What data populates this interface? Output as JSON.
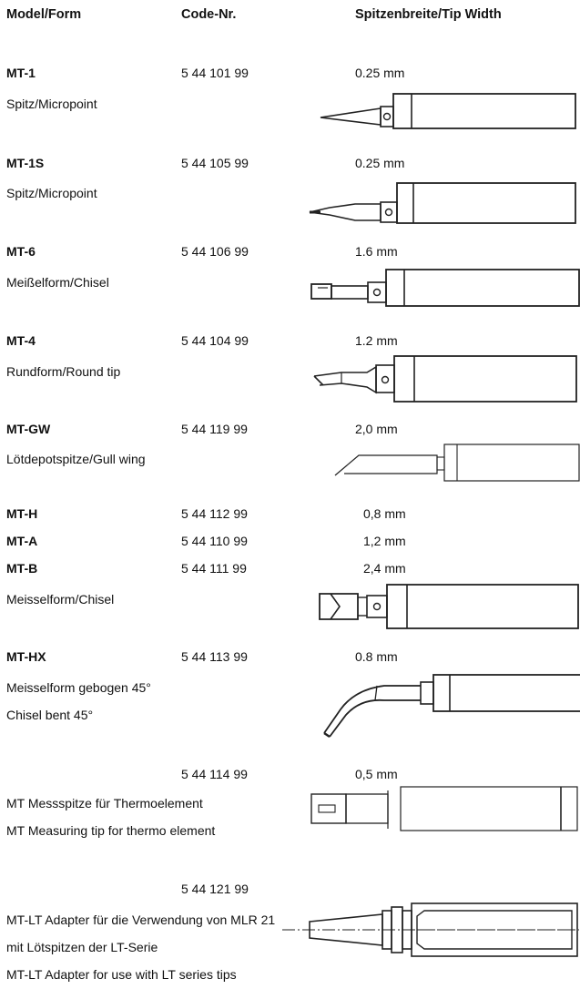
{
  "header": {
    "model": "Model/Form",
    "code": "Code-Nr.",
    "width": "Spitzenbreite/Tip Width"
  },
  "rows": [
    {
      "model": "MT-1",
      "desc": "Spitz/Micropoint",
      "code": "5 44 101 99",
      "width": "0.25 mm"
    },
    {
      "model": "MT-1S",
      "desc": "Spitz/Micropoint",
      "code": "5 44 105 99",
      "width": "0.25 mm"
    },
    {
      "model": "MT-6",
      "desc": "Meißelform/Chisel",
      "code": "5 44 106 99",
      "width": "1.6 mm"
    },
    {
      "model": "MT-4",
      "desc": "Rundform/Round tip",
      "code": "5 44 104 99",
      "width": "1.2 mm"
    },
    {
      "model": "MT-GW",
      "desc": "Lötdepotspitze/Gull wing",
      "code": "5 44 119 99",
      "width": "2,0 mm"
    }
  ],
  "group": {
    "items": [
      {
        "model": "MT-H",
        "code": "5 44 112 99",
        "width": "0,8 mm"
      },
      {
        "model": "MT-A",
        "code": "5 44 110 99",
        "width": "1,2 mm"
      },
      {
        "model": "MT-B",
        "code": "5 44 111 99",
        "width": "2,4 mm"
      }
    ],
    "desc": "Meisselform/Chisel"
  },
  "hx": {
    "model": "MT-HX",
    "code": "5 44 113 99",
    "width": "0.8 mm",
    "desc1": "Meisselform gebogen 45°",
    "desc2": "Chisel bent 45°"
  },
  "measuring": {
    "code": "5 44 114 99",
    "width": "0,5 mm",
    "desc1": "MT Messspitze für Thermoelement",
    "desc2": "MT Measuring tip for thermo element"
  },
  "adapter": {
    "code": "5 44 121 99",
    "desc1": "MT-LT Adapter für die Verwendung von MLR 21",
    "desc2": "mit Lötspitzen der LT-Serie",
    "desc3": "MT-LT Adapter for use with LT series tips"
  }
}
